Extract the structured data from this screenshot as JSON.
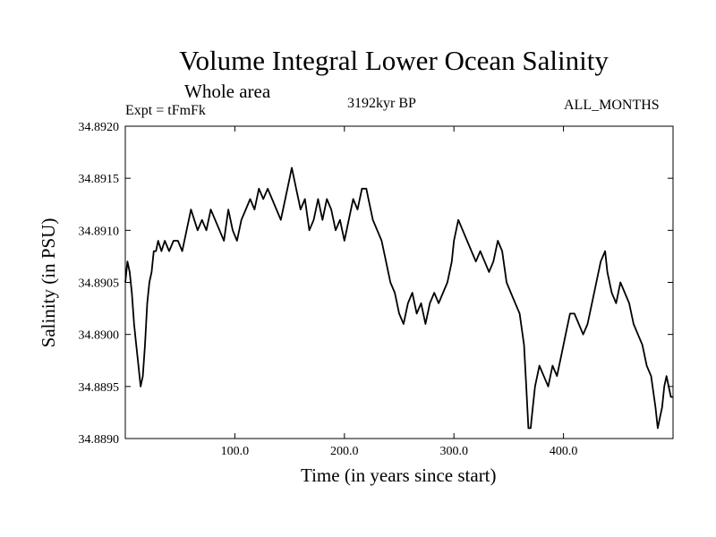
{
  "header": {
    "title": "Volume Integral Lower Ocean Salinity",
    "subtitle": "Whole area",
    "experiment": "Expt = tFmFk",
    "period": "3192kyr BP",
    "months": "ALL_MONTHS"
  },
  "chart_data": {
    "type": "line",
    "title": "Volume Integral Lower Ocean Salinity",
    "subtitle": "Whole area",
    "xlabel": "Time (in years since start)",
    "ylabel": "Salinity (in PSU)",
    "xlim": [
      0,
      500
    ],
    "ylim": [
      34.889,
      34.892
    ],
    "xticks": [
      100,
      200,
      300,
      400
    ],
    "xtick_labels": [
      "100.0",
      "200.0",
      "300.0",
      "400.0"
    ],
    "yticks": [
      34.889,
      34.8895,
      34.89,
      34.8905,
      34.891,
      34.8915,
      34.892
    ],
    "ytick_labels": [
      "34.8890",
      "34.8895",
      "34.8900",
      "34.8905",
      "34.8910",
      "34.8915",
      "34.8920"
    ],
    "grid": false,
    "series": [
      {
        "name": "Salinity",
        "color": "#000000",
        "x": [
          0,
          2,
          4,
          6,
          8,
          10,
          12,
          14,
          16,
          18,
          20,
          22,
          24,
          26,
          28,
          30,
          33,
          36,
          40,
          44,
          48,
          52,
          56,
          60,
          63,
          66,
          70,
          74,
          78,
          82,
          86,
          90,
          94,
          98,
          102,
          106,
          110,
          114,
          118,
          122,
          126,
          130,
          134,
          138,
          142,
          146,
          150,
          152,
          154,
          156,
          158,
          160,
          164,
          168,
          172,
          176,
          180,
          184,
          188,
          192,
          196,
          200,
          204,
          208,
          212,
          216,
          220,
          222,
          226,
          230,
          234,
          238,
          242,
          246,
          250,
          254,
          258,
          262,
          266,
          270,
          274,
          278,
          282,
          286,
          290,
          294,
          298,
          300,
          304,
          308,
          312,
          316,
          320,
          324,
          328,
          332,
          336,
          340,
          344,
          348,
          352,
          356,
          360,
          364,
          366,
          368,
          370,
          372,
          374,
          378,
          382,
          386,
          390,
          394,
          398,
          402,
          406,
          410,
          414,
          418,
          422,
          426,
          430,
          434,
          438,
          440,
          444,
          448,
          452,
          456,
          460,
          464,
          468,
          472,
          476,
          480,
          484,
          486,
          488,
          490,
          492,
          494,
          496,
          498,
          500
        ],
        "values": [
          34.8905,
          34.8907,
          34.8906,
          34.8904,
          34.8901,
          34.8899,
          34.8897,
          34.8895,
          34.8896,
          34.8899,
          34.8903,
          34.8905,
          34.8906,
          34.8908,
          34.8908,
          34.8909,
          34.8908,
          34.8909,
          34.8908,
          34.8909,
          34.8909,
          34.8908,
          34.891,
          34.8912,
          34.8911,
          34.891,
          34.8911,
          34.891,
          34.8912,
          34.8911,
          34.891,
          34.8909,
          34.8912,
          34.891,
          34.8909,
          34.8911,
          34.8912,
          34.8913,
          34.8912,
          34.8914,
          34.8913,
          34.8914,
          34.8913,
          34.8912,
          34.8911,
          34.8913,
          34.8915,
          34.8916,
          34.8915,
          34.8914,
          34.8913,
          34.8912,
          34.8913,
          34.891,
          34.8911,
          34.8913,
          34.8911,
          34.8913,
          34.8912,
          34.891,
          34.8911,
          34.8909,
          34.8911,
          34.8913,
          34.8912,
          34.8914,
          34.8914,
          34.8913,
          34.8911,
          34.891,
          34.8909,
          34.8907,
          34.8905,
          34.8904,
          34.8902,
          34.8901,
          34.8903,
          34.8904,
          34.8902,
          34.8903,
          34.8901,
          34.8903,
          34.8904,
          34.8903,
          34.8904,
          34.8905,
          34.8907,
          34.8909,
          34.8911,
          34.891,
          34.8909,
          34.8908,
          34.8907,
          34.8908,
          34.8907,
          34.8906,
          34.8907,
          34.8909,
          34.8908,
          34.8905,
          34.8904,
          34.8903,
          34.8902,
          34.8899,
          34.8895,
          34.8891,
          34.8891,
          34.8893,
          34.8895,
          34.8897,
          34.8896,
          34.8895,
          34.8897,
          34.8896,
          34.8898,
          34.89,
          34.8902,
          34.8902,
          34.8901,
          34.89,
          34.8901,
          34.8903,
          34.8905,
          34.8907,
          34.8908,
          34.8906,
          34.8904,
          34.8903,
          34.8905,
          34.8904,
          34.8903,
          34.8901,
          34.89,
          34.8899,
          34.8897,
          34.8896,
          34.8893,
          34.8891,
          34.8892,
          34.8893,
          34.8895,
          34.8896,
          34.8895,
          34.8894,
          34.8894
        ]
      }
    ]
  }
}
